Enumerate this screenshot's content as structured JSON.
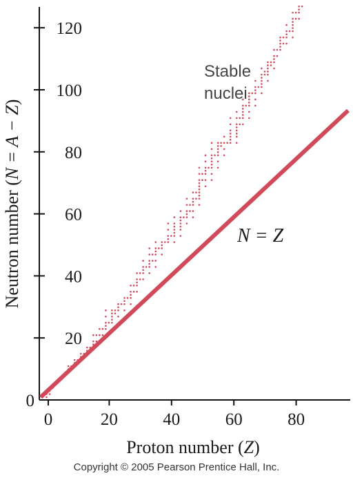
{
  "chart_data": {
    "type": "scatter",
    "title": "",
    "xlabel_prefix": "Proton number (",
    "xlabel_var": "Z",
    "xlabel_suffix": ")",
    "ylabel_prefix": "Neutron number (",
    "ylabel_formula": "N = A − Z",
    "ylabel_suffix": ")",
    "xlim": [
      -2,
      100
    ],
    "ylim": [
      0,
      126
    ],
    "x_ticks": [
      0,
      20,
      40,
      60,
      80
    ],
    "y_ticks": [
      0,
      20,
      40,
      60,
      80,
      100,
      120
    ],
    "grid": false,
    "series": [
      {
        "name": "Stable nuclei",
        "marker": "dot",
        "color": "#d04a5a",
        "points": [
          [
            1,
            0
          ],
          [
            1,
            1
          ],
          [
            2,
            1
          ],
          [
            2,
            2
          ],
          [
            3,
            3
          ],
          [
            3,
            4
          ],
          [
            4,
            5
          ],
          [
            5,
            5
          ],
          [
            5,
            6
          ],
          [
            6,
            6
          ],
          [
            6,
            7
          ],
          [
            7,
            7
          ],
          [
            7,
            8
          ],
          [
            8,
            8
          ],
          [
            8,
            9
          ],
          [
            8,
            10
          ],
          [
            9,
            10
          ],
          [
            10,
            10
          ],
          [
            10,
            11
          ],
          [
            10,
            12
          ],
          [
            11,
            12
          ],
          [
            12,
            12
          ],
          [
            12,
            13
          ],
          [
            12,
            14
          ],
          [
            13,
            14
          ],
          [
            14,
            14
          ],
          [
            14,
            15
          ],
          [
            14,
            16
          ],
          [
            15,
            16
          ],
          [
            16,
            16
          ],
          [
            16,
            17
          ],
          [
            16,
            18
          ],
          [
            16,
            20
          ],
          [
            17,
            18
          ],
          [
            17,
            20
          ],
          [
            18,
            18
          ],
          [
            18,
            20
          ],
          [
            18,
            22
          ],
          [
            19,
            20
          ],
          [
            19,
            22
          ],
          [
            20,
            20
          ],
          [
            20,
            22
          ],
          [
            20,
            23
          ],
          [
            20,
            24
          ],
          [
            20,
            26
          ],
          [
            20,
            28
          ],
          [
            21,
            24
          ],
          [
            22,
            24
          ],
          [
            22,
            25
          ],
          [
            22,
            26
          ],
          [
            22,
            27
          ],
          [
            22,
            28
          ],
          [
            23,
            27
          ],
          [
            23,
            28
          ],
          [
            24,
            26
          ],
          [
            24,
            28
          ],
          [
            24,
            29
          ],
          [
            24,
            30
          ],
          [
            25,
            30
          ],
          [
            26,
            28
          ],
          [
            26,
            30
          ],
          [
            26,
            31
          ],
          [
            26,
            32
          ],
          [
            27,
            32
          ],
          [
            28,
            30
          ],
          [
            28,
            32
          ],
          [
            28,
            33
          ],
          [
            28,
            34
          ],
          [
            28,
            36
          ],
          [
            29,
            34
          ],
          [
            29,
            36
          ],
          [
            30,
            34
          ],
          [
            30,
            36
          ],
          [
            30,
            37
          ],
          [
            30,
            38
          ],
          [
            30,
            40
          ],
          [
            31,
            38
          ],
          [
            31,
            40
          ],
          [
            32,
            38
          ],
          [
            32,
            40
          ],
          [
            32,
            41
          ],
          [
            32,
            42
          ],
          [
            32,
            44
          ],
          [
            33,
            42
          ],
          [
            34,
            40
          ],
          [
            34,
            42
          ],
          [
            34,
            43
          ],
          [
            34,
            44
          ],
          [
            34,
            46
          ],
          [
            34,
            48
          ],
          [
            35,
            44
          ],
          [
            35,
            46
          ],
          [
            36,
            42
          ],
          [
            36,
            44
          ],
          [
            36,
            46
          ],
          [
            36,
            47
          ],
          [
            36,
            48
          ],
          [
            36,
            50
          ],
          [
            37,
            48
          ],
          [
            38,
            46
          ],
          [
            38,
            48
          ],
          [
            38,
            49
          ],
          [
            38,
            50
          ],
          [
            39,
            50
          ],
          [
            40,
            50
          ],
          [
            40,
            51
          ],
          [
            40,
            52
          ],
          [
            40,
            54
          ],
          [
            40,
            56
          ],
          [
            41,
            52
          ],
          [
            42,
            50
          ],
          [
            42,
            52
          ],
          [
            42,
            53
          ],
          [
            42,
            54
          ],
          [
            42,
            55
          ],
          [
            42,
            56
          ],
          [
            42,
            58
          ],
          [
            44,
            52
          ],
          [
            44,
            54
          ],
          [
            44,
            55
          ],
          [
            44,
            56
          ],
          [
            44,
            57
          ],
          [
            44,
            58
          ],
          [
            44,
            60
          ],
          [
            45,
            58
          ],
          [
            46,
            56
          ],
          [
            46,
            58
          ],
          [
            46,
            59
          ],
          [
            46,
            60
          ],
          [
            46,
            62
          ],
          [
            46,
            64
          ],
          [
            47,
            60
          ],
          [
            47,
            62
          ],
          [
            48,
            58
          ],
          [
            48,
            60
          ],
          [
            48,
            62
          ],
          [
            48,
            63
          ],
          [
            48,
            64
          ],
          [
            48,
            66
          ],
          [
            49,
            64
          ],
          [
            49,
            66
          ],
          [
            50,
            62
          ],
          [
            50,
            64
          ],
          [
            50,
            65
          ],
          [
            50,
            66
          ],
          [
            50,
            67
          ],
          [
            50,
            68
          ],
          [
            50,
            69
          ],
          [
            50,
            70
          ],
          [
            50,
            72
          ],
          [
            50,
            74
          ],
          [
            51,
            70
          ],
          [
            51,
            72
          ],
          [
            52,
            68
          ],
          [
            52,
            70
          ],
          [
            52,
            72
          ],
          [
            52,
            73
          ],
          [
            52,
            74
          ],
          [
            52,
            76
          ],
          [
            52,
            78
          ],
          [
            53,
            74
          ],
          [
            54,
            70
          ],
          [
            54,
            72
          ],
          [
            54,
            74
          ],
          [
            54,
            75
          ],
          [
            54,
            76
          ],
          [
            54,
            77
          ],
          [
            54,
            78
          ],
          [
            54,
            80
          ],
          [
            54,
            82
          ],
          [
            55,
            78
          ],
          [
            56,
            74
          ],
          [
            56,
            76
          ],
          [
            56,
            78
          ],
          [
            56,
            79
          ],
          [
            56,
            80
          ],
          [
            56,
            81
          ],
          [
            56,
            82
          ],
          [
            57,
            81
          ],
          [
            57,
            82
          ],
          [
            58,
            78
          ],
          [
            58,
            80
          ],
          [
            58,
            82
          ],
          [
            58,
            84
          ],
          [
            59,
            82
          ],
          [
            60,
            82
          ],
          [
            60,
            83
          ],
          [
            60,
            84
          ],
          [
            60,
            85
          ],
          [
            60,
            86
          ],
          [
            60,
            88
          ],
          [
            60,
            90
          ],
          [
            62,
            82
          ],
          [
            62,
            84
          ],
          [
            62,
            85
          ],
          [
            62,
            86
          ],
          [
            62,
            87
          ],
          [
            62,
            88
          ],
          [
            62,
            90
          ],
          [
            62,
            92
          ],
          [
            63,
            88
          ],
          [
            63,
            90
          ],
          [
            64,
            88
          ],
          [
            64,
            90
          ],
          [
            64,
            91
          ],
          [
            64,
            92
          ],
          [
            64,
            93
          ],
          [
            64,
            94
          ],
          [
            64,
            96
          ],
          [
            65,
            94
          ],
          [
            66,
            90
          ],
          [
            66,
            92
          ],
          [
            66,
            94
          ],
          [
            66,
            95
          ],
          [
            66,
            96
          ],
          [
            66,
            97
          ],
          [
            66,
            98
          ],
          [
            67,
            98
          ],
          [
            68,
            94
          ],
          [
            68,
            96
          ],
          [
            68,
            98
          ],
          [
            68,
            99
          ],
          [
            68,
            100
          ],
          [
            68,
            102
          ],
          [
            69,
            100
          ],
          [
            70,
            98
          ],
          [
            70,
            100
          ],
          [
            70,
            101
          ],
          [
            70,
            102
          ],
          [
            70,
            103
          ],
          [
            70,
            104
          ],
          [
            70,
            106
          ],
          [
            71,
            104
          ],
          [
            71,
            105
          ],
          [
            72,
            102
          ],
          [
            72,
            104
          ],
          [
            72,
            105
          ],
          [
            72,
            106
          ],
          [
            72,
            107
          ],
          [
            72,
            108
          ],
          [
            73,
            107
          ],
          [
            73,
            108
          ],
          [
            74,
            106
          ],
          [
            74,
            108
          ],
          [
            74,
            109
          ],
          [
            74,
            110
          ],
          [
            74,
            112
          ],
          [
            75,
            110
          ],
          [
            75,
            112
          ],
          [
            76,
            112
          ],
          [
            76,
            113
          ],
          [
            76,
            114
          ],
          [
            76,
            115
          ],
          [
            76,
            116
          ],
          [
            77,
            114
          ],
          [
            77,
            116
          ],
          [
            78,
            114
          ],
          [
            78,
            116
          ],
          [
            78,
            117
          ],
          [
            78,
            118
          ],
          [
            78,
            120
          ],
          [
            79,
            118
          ],
          [
            80,
            116
          ],
          [
            80,
            118
          ],
          [
            80,
            119
          ],
          [
            80,
            120
          ],
          [
            80,
            121
          ],
          [
            80,
            122
          ],
          [
            80,
            124
          ],
          [
            81,
            122
          ],
          [
            81,
            124
          ],
          [
            82,
            122
          ],
          [
            82,
            124
          ],
          [
            82,
            125
          ],
          [
            82,
            126
          ],
          [
            83,
            126
          ]
        ]
      },
      {
        "name": "N = Z",
        "type": "line",
        "color": "#d04a5a",
        "x": [
          0,
          96
        ],
        "y": [
          0,
          96
        ]
      }
    ],
    "annotations": [
      {
        "text_line1": "Stable",
        "text_line2": "nuclei",
        "x": 65,
        "y": 104
      },
      {
        "text": "N = Z",
        "x": 70,
        "y": 52
      }
    ]
  },
  "footer": {
    "copyright": "Copyright © 2005 Pearson Prentice Hall, Inc."
  }
}
